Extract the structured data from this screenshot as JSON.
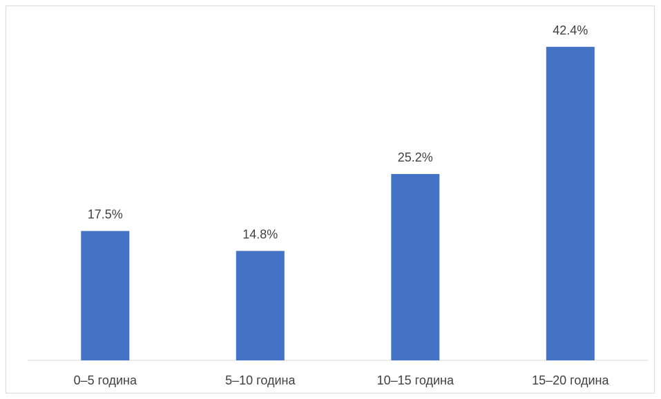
{
  "chart_data": {
    "type": "bar",
    "categories": [
      "0–5 година",
      "5–10 година",
      "10–15 година",
      "15–20 година"
    ],
    "values": [
      17.5,
      14.8,
      25.2,
      42.4
    ],
    "data_labels": [
      "17.5%",
      "14.8%",
      "25.2%",
      "42.4%"
    ],
    "title": "",
    "xlabel": "",
    "ylabel": "",
    "ylim": [
      0,
      45
    ],
    "grid": false,
    "legend": "none",
    "bar_color": "#4472C4"
  }
}
